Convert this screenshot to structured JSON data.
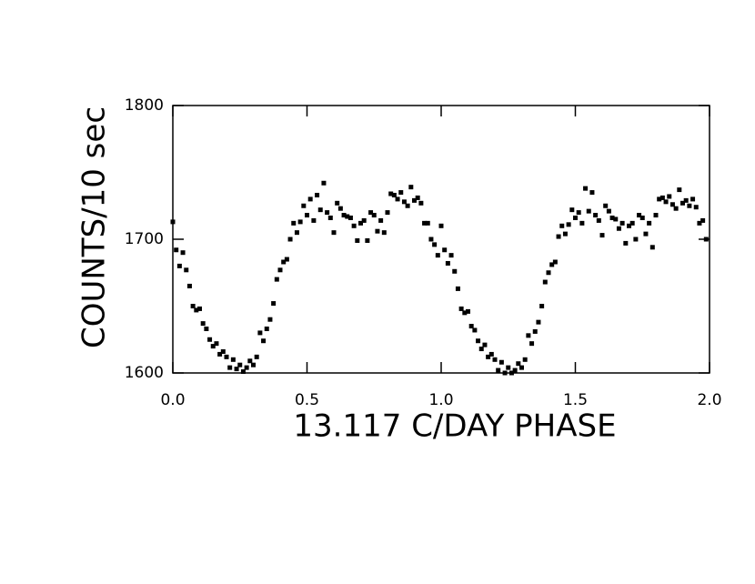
{
  "chart_data": {
    "type": "scatter",
    "xlabel": "13.117 C/DAY PHASE",
    "ylabel": "COUNTS/10 sec",
    "xlim": [
      0,
      2
    ],
    "ylim": [
      1600,
      1800
    ],
    "xticks": [
      {
        "value": 0,
        "label": "0.0"
      },
      0.5,
      {
        "value": 1,
        "label": "1.0"
      },
      1.5,
      {
        "value": 2,
        "label": "2.0"
      }
    ],
    "yticks": [
      1600,
      1700,
      1800
    ],
    "color": "#000000",
    "x": [
      0.0,
      0.0125,
      0.025,
      0.0375,
      0.05,
      0.0625,
      0.075,
      0.0875,
      0.1,
      0.1125,
      0.125,
      0.1375,
      0.15,
      0.1625,
      0.175,
      0.1875,
      0.2,
      0.2125,
      0.225,
      0.2375,
      0.25,
      0.2625,
      0.275,
      0.2875,
      0.3,
      0.3125,
      0.325,
      0.3375,
      0.35,
      0.3625,
      0.375,
      0.3875,
      0.4,
      0.4125,
      0.425,
      0.4375,
      0.45,
      0.4625,
      0.475,
      0.4875,
      0.5,
      0.5125,
      0.525,
      0.5375,
      0.55,
      0.5625,
      0.575,
      0.5875,
      0.6,
      0.6125,
      0.625,
      0.6375,
      0.65,
      0.6625,
      0.675,
      0.6875,
      0.7,
      0.7125,
      0.725,
      0.7375,
      0.75,
      0.7625,
      0.775,
      0.7875,
      0.8,
      0.8125,
      0.825,
      0.8375,
      0.85,
      0.8625,
      0.875,
      0.8875,
      0.9,
      0.9125,
      0.925,
      0.9375,
      0.95,
      0.9625,
      0.975,
      0.9875,
      1.0,
      1.0125,
      1.025,
      1.0375,
      1.05,
      1.0625,
      1.075,
      1.0875,
      1.1,
      1.1125,
      1.125,
      1.1375,
      1.15,
      1.1625,
      1.175,
      1.1875,
      1.2,
      1.2125,
      1.225,
      1.2375,
      1.25,
      1.2625,
      1.275,
      1.2875,
      1.3,
      1.3125,
      1.325,
      1.3375,
      1.35,
      1.3625,
      1.375,
      1.3875,
      1.4,
      1.4125,
      1.425,
      1.4375,
      1.45,
      1.4625,
      1.475,
      1.4875,
      1.5,
      1.5125,
      1.525,
      1.5375,
      1.55,
      1.5625,
      1.575,
      1.5875,
      1.6,
      1.6125,
      1.625,
      1.6375,
      1.65,
      1.6625,
      1.675,
      1.6875,
      1.7,
      1.7125,
      1.725,
      1.7375,
      1.75,
      1.7625,
      1.775,
      1.7875,
      1.8,
      1.8125,
      1.825,
      1.8375,
      1.85,
      1.8625,
      1.875,
      1.8875,
      1.9,
      1.9125,
      1.925,
      1.9375,
      1.95,
      1.9625,
      1.975,
      1.9875
    ],
    "values": [
      1713,
      1692,
      1680,
      1690,
      1677,
      1665,
      1650,
      1647,
      1648,
      1637,
      1633,
      1625,
      1620,
      1622,
      1614,
      1616,
      1612,
      1604,
      1610,
      1603,
      1606,
      1601,
      1604,
      1609,
      1606,
      1612,
      1630,
      1624,
      1633,
      1640,
      1652,
      1670,
      1677,
      1683,
      1685,
      1700,
      1712,
      1705,
      1713,
      1725,
      1718,
      1730,
      1714,
      1733,
      1722,
      1742,
      1720,
      1716,
      1705,
      1727,
      1723,
      1718,
      1717,
      1716,
      1710,
      1699,
      1712,
      1714,
      1699,
      1720,
      1718,
      1706,
      1714,
      1705,
      1720,
      1734,
      1733,
      1730,
      1735,
      1728,
      1725,
      1739,
      1729,
      1731,
      1727,
      1712,
      1712,
      1700,
      1696,
      1688,
      1710,
      1692,
      1682,
      1688,
      1676,
      1663,
      1648,
      1645,
      1646,
      1635,
      1632,
      1624,
      1618,
      1621,
      1612,
      1614,
      1610,
      1602,
      1608,
      1600,
      1604,
      1600,
      1602,
      1607,
      1604,
      1610,
      1628,
      1622,
      1631,
      1638,
      1650,
      1668,
      1675,
      1681,
      1683,
      1702,
      1710,
      1704,
      1711,
      1722,
      1716,
      1720,
      1712,
      1738,
      1721,
      1735,
      1718,
      1714,
      1703,
      1725,
      1721,
      1716,
      1715,
      1708,
      1712,
      1697,
      1710,
      1712,
      1700,
      1718,
      1716,
      1704,
      1712,
      1694,
      1718,
      1730,
      1731,
      1728,
      1732,
      1726,
      1723,
      1737,
      1727,
      1729,
      1725,
      1730,
      1724,
      1712,
      1714,
      1700
    ]
  }
}
